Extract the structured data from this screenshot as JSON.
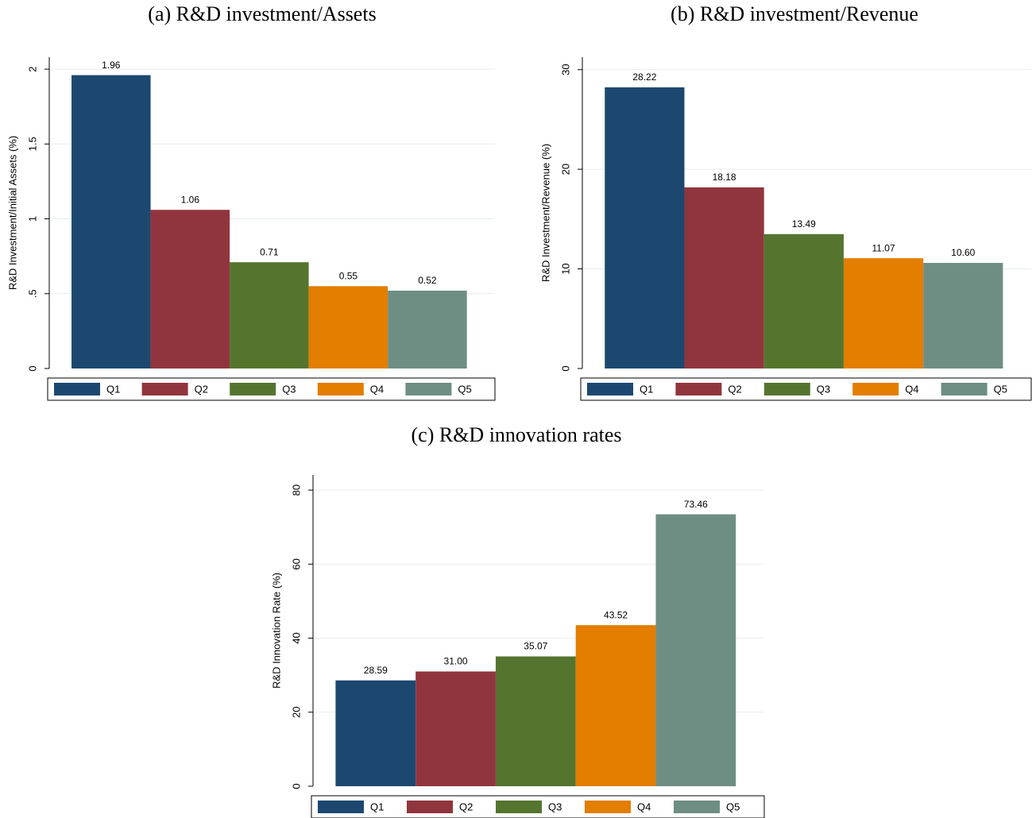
{
  "chart_data": [
    {
      "type": "bar",
      "title": "(a) R&D investment/Assets",
      "ylabel": "R&D Investment/Initial Assets (%)",
      "ylim": [
        0,
        2.08
      ],
      "yticks": [
        0,
        {
          "value": 0.5,
          "label": ".5"
        },
        1,
        1.5,
        2
      ],
      "grid": true,
      "legend": "bottom",
      "series": [
        {
          "name": "Q1",
          "color": "#1c4870",
          "values": [
            1.96
          ],
          "value_labels": [
            "1.96"
          ]
        },
        {
          "name": "Q2",
          "color": "#90353e",
          "values": [
            1.06
          ],
          "value_labels": [
            "1.06"
          ]
        },
        {
          "name": "Q3",
          "color": "#55752f",
          "values": [
            0.71
          ],
          "value_labels": [
            "0.71"
          ]
        },
        {
          "name": "Q4",
          "color": "#e37e00",
          "values": [
            0.55
          ],
          "value_labels": [
            "0.55"
          ]
        },
        {
          "name": "Q5",
          "color": "#6e8e83",
          "values": [
            0.52
          ],
          "value_labels": [
            "0.52"
          ]
        }
      ]
    },
    {
      "type": "bar",
      "title": "(b) R&D investment/Revenue",
      "ylabel": "R&D Investment/Revenue (%)",
      "ylim": [
        0,
        31.25
      ],
      "yticks": [
        0,
        10,
        20,
        30
      ],
      "grid": true,
      "legend": "bottom",
      "series": [
        {
          "name": "Q1",
          "color": "#1c4870",
          "values": [
            28.22
          ],
          "value_labels": [
            "28.22"
          ]
        },
        {
          "name": "Q2",
          "color": "#90353e",
          "values": [
            18.18
          ],
          "value_labels": [
            "18.18"
          ]
        },
        {
          "name": "Q3",
          "color": "#55752f",
          "values": [
            13.49
          ],
          "value_labels": [
            "13.49"
          ]
        },
        {
          "name": "Q4",
          "color": "#e37e00",
          "values": [
            11.07
          ],
          "value_labels": [
            "11.07"
          ]
        },
        {
          "name": "Q5",
          "color": "#6e8e83",
          "values": [
            10.6
          ],
          "value_labels": [
            "10.60"
          ]
        }
      ]
    },
    {
      "type": "bar",
      "title": "(c) R&D innovation rates",
      "ylabel": "R&D Innovation Rate (%)",
      "ylim": [
        0,
        84.1
      ],
      "yticks": [
        0,
        20,
        40,
        60,
        80
      ],
      "grid": true,
      "legend": "bottom",
      "series": [
        {
          "name": "Q1",
          "color": "#1c4870",
          "values": [
            28.59
          ],
          "value_labels": [
            "28.59"
          ]
        },
        {
          "name": "Q2",
          "color": "#90353e",
          "values": [
            31.0
          ],
          "value_labels": [
            "31.00"
          ]
        },
        {
          "name": "Q3",
          "color": "#55752f",
          "values": [
            35.07
          ],
          "value_labels": [
            "35.07"
          ]
        },
        {
          "name": "Q4",
          "color": "#e37e00",
          "values": [
            43.52
          ],
          "value_labels": [
            "43.52"
          ]
        },
        {
          "name": "Q5",
          "color": "#6e8e83",
          "values": [
            73.46
          ],
          "value_labels": [
            "73.46"
          ]
        }
      ]
    }
  ]
}
